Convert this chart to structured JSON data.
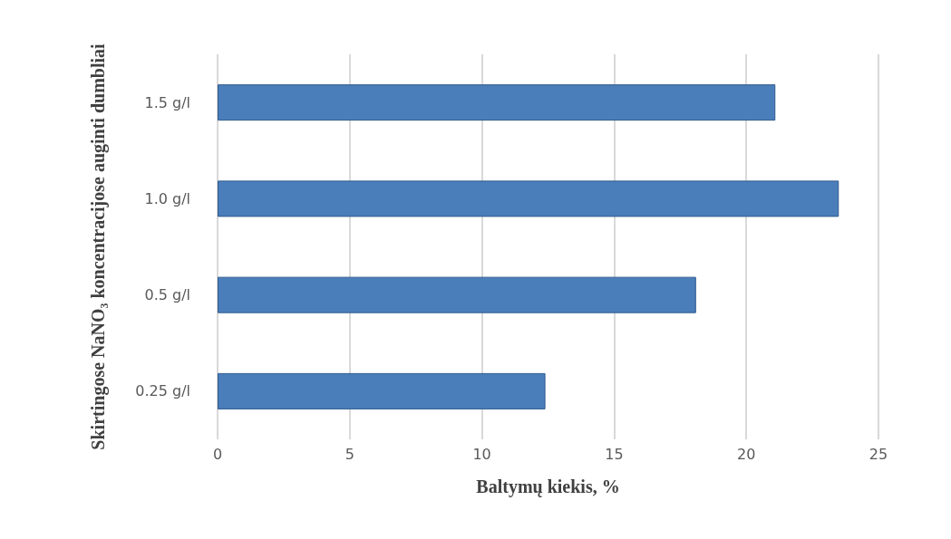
{
  "chart_data": {
    "type": "bar",
    "orientation": "horizontal",
    "xlabel": "Baltymų kiekis, %",
    "ylabel": "Skirtingose NaNO₃ koncentracijose auginti dumbliai",
    "categories": [
      "1.5 g/l",
      "1.0 g/l",
      "0.5 g/l",
      "0.25 g/l"
    ],
    "values": [
      21.1,
      23.5,
      18.1,
      12.4
    ],
    "color": "#4a7ebb",
    "xlim": [
      0,
      25
    ],
    "xticks": [
      0,
      5,
      10,
      15,
      20,
      25
    ],
    "grid": "x"
  }
}
